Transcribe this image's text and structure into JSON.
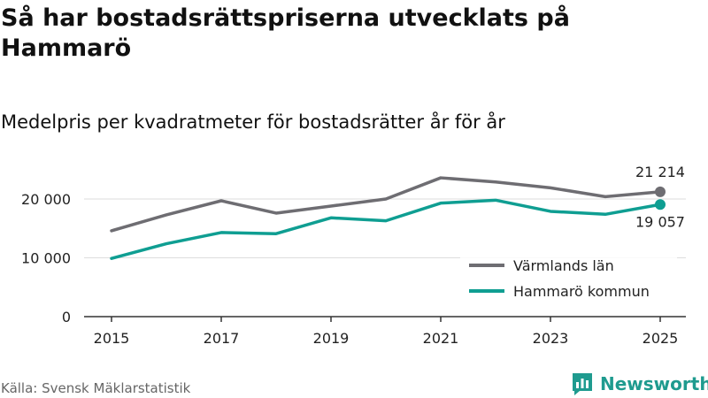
{
  "header": {
    "title": "Så har bostadsrättspriserna utvecklats på Hammarö",
    "subtitle": "Medelpris per kvadratmeter för bostadsrätter år för år"
  },
  "footer": {
    "source": "Källa: Svensk Mäklarstatistik",
    "brand": "Newsworthy"
  },
  "colors": {
    "varmland": "#6e6d72",
    "hammaro": "#0f9e92",
    "grid": "#dddddd",
    "axis": "#333333"
  },
  "chart_data": {
    "type": "line",
    "title": "Så har bostadsrättspriserna utvecklats på Hammarö",
    "subtitle": "Medelpris per kvadratmeter för bostadsrätter år för år",
    "xlabel": "",
    "ylabel": "",
    "x": [
      2015,
      2016,
      2017,
      2018,
      2019,
      2020,
      2021,
      2022,
      2023,
      2024,
      2025
    ],
    "xticks": [
      2015,
      2017,
      2019,
      2021,
      2023,
      2025
    ],
    "xtick_labels": [
      "2015",
      "2017",
      "2019",
      "2021",
      "2023",
      "2025"
    ],
    "ylim": [
      0,
      25000
    ],
    "yticks": [
      0,
      10000,
      20000
    ],
    "ytick_labels": [
      "0",
      "10 000",
      "20 000"
    ],
    "grid": true,
    "legend_position": "bottom-right",
    "series": [
      {
        "name": "Värmlands län",
        "color": "#6e6d72",
        "values": [
          14600,
          17300,
          19700,
          17600,
          18800,
          20000,
          23600,
          22900,
          21900,
          20400,
          21214
        ],
        "end_label": "21 214"
      },
      {
        "name": "Hammarö kommun",
        "color": "#0f9e92",
        "values": [
          9900,
          12400,
          14300,
          14100,
          16800,
          16300,
          19300,
          19800,
          17900,
          17400,
          19057
        ],
        "end_label": "19 057"
      }
    ]
  }
}
